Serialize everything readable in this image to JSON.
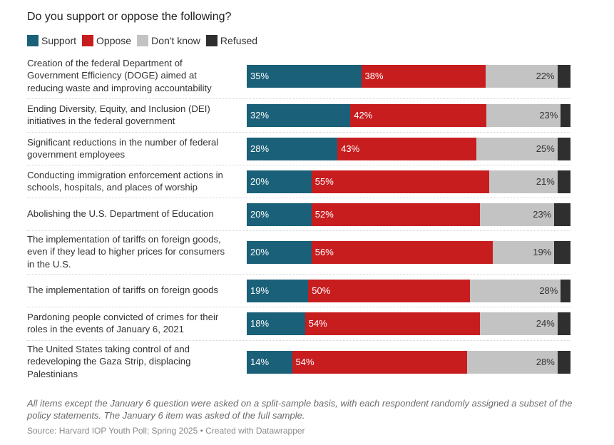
{
  "colors": {
    "support": "#1a6078",
    "oppose": "#c81d1f",
    "dontknow": "#c3c3c3",
    "refused": "#2f2f2f"
  },
  "chart_data": {
    "type": "bar",
    "orientation": "horizontal-stacked",
    "title": "Do you support or oppose the following?",
    "xlabel": "",
    "ylabel": "",
    "xlim": [
      0,
      100
    ],
    "unit": "%",
    "legend_position": "top-left",
    "legend": [
      "Support",
      "Oppose",
      "Don't know",
      "Refused"
    ],
    "categories": [
      "Creation of the federal Department of Government Efficiency (DOGE) aimed at reducing waste and improving accountability",
      "Ending Diversity, Equity, and Inclusion (DEI) initiatives in the federal government",
      "Significant reductions in the number of federal government employees",
      "Conducting immigration enforcement actions in schools, hospitals, and places of worship",
      "Abolishing the U.S. Department of Education",
      "The implementation of tariffs on foreign goods, even if they lead to higher prices for consumers in the U.S.",
      "The implementation of tariffs on foreign goods",
      "Pardoning people convicted of crimes for their roles in the events of January 6, 2021",
      "The United States taking control of and redeveloping the Gaza Strip, displacing Palestinians"
    ],
    "category_lines": [
      [
        "Creation of the federal Department of",
        "Government Efficiency (DOGE) aimed at",
        "reducing waste and improving accountability"
      ],
      [
        "Ending Diversity, Equity, and Inclusion (DEI)",
        "initiatives in the federal government"
      ],
      [
        "Significant reductions in the number of federal",
        "government employees"
      ],
      [
        "Conducting immigration enforcement actions in",
        "schools, hospitals, and places of worship"
      ],
      [
        "Abolishing the U.S. Department of Education"
      ],
      [
        "The implementation of tariffs on foreign goods,",
        "even if they lead to higher prices for consumers",
        "in the U.S."
      ],
      [
        "The implementation of tariffs on foreign goods"
      ],
      [
        "Pardoning people convicted of crimes for their",
        "roles in the events of January 6, 2021"
      ],
      [
        "The United States taking control of and",
        "redeveloping the Gaza Strip, displacing",
        "Palestinians"
      ]
    ],
    "series": [
      {
        "name": "Support",
        "key": "support",
        "values": [
          35,
          32,
          28,
          20,
          20,
          20,
          19,
          18,
          14
        ],
        "show_labels": true
      },
      {
        "name": "Oppose",
        "key": "oppose",
        "values": [
          38,
          42,
          43,
          55,
          52,
          56,
          50,
          54,
          54
        ],
        "show_labels": true
      },
      {
        "name": "Don't know",
        "key": "dontknow",
        "values": [
          22,
          23,
          25,
          21,
          23,
          19,
          28,
          24,
          28
        ],
        "show_labels": true
      },
      {
        "name": "Refused",
        "key": "refused",
        "values": [
          4,
          3,
          4,
          4,
          5,
          5,
          3,
          4,
          4
        ],
        "show_labels": false
      }
    ]
  },
  "header": {
    "title": "Do you support or oppose the following?",
    "legend": [
      {
        "label": "Support",
        "key": "support"
      },
      {
        "label": "Oppose",
        "key": "oppose"
      },
      {
        "label": "Don't know",
        "key": "dontknow"
      },
      {
        "label": "Refused",
        "key": "refused"
      }
    ]
  },
  "footer": {
    "note": "All items except the January 6 question were asked on a split-sample basis, with each respondent randomly assigned a subset of the policy statements. The January 6 item was asked of the full sample.",
    "source": "Source: Harvard IOP Youth Poll; Spring 2025 • Created with Datawrapper"
  }
}
